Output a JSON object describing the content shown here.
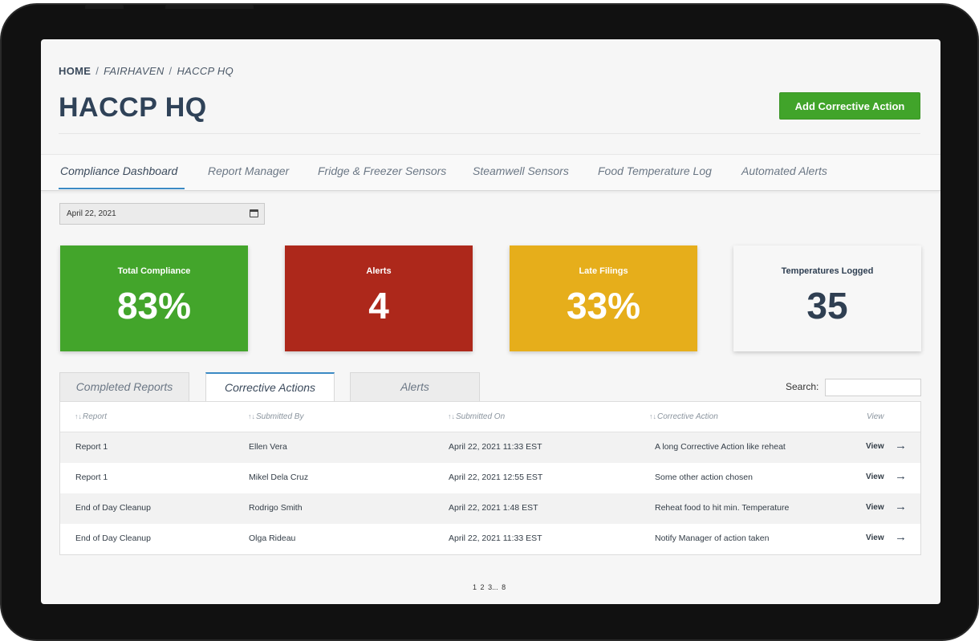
{
  "breadcrumb": {
    "home": "HOME",
    "sep": "/",
    "items": [
      "FAIRHAVEN",
      "HACCP HQ"
    ]
  },
  "page_title": "HACCP HQ",
  "add_button": "Add Corrective Action",
  "tabs": [
    {
      "label": "Compliance Dashboard",
      "active": true
    },
    {
      "label": "Report Manager"
    },
    {
      "label": "Fridge & Freezer Sensors"
    },
    {
      "label": "Steamwell Sensors"
    },
    {
      "label": "Food Temperature Log"
    },
    {
      "label": "Automated Alerts"
    }
  ],
  "date_value": "April 22, 2021",
  "cards": [
    {
      "label": "Total Compliance",
      "value": "83%",
      "color": "#43a52b"
    },
    {
      "label": "Alerts",
      "value": "4",
      "color": "#ad281b"
    },
    {
      "label": "Late Filings",
      "value": "33%",
      "color": "#e6ae1b"
    },
    {
      "label": "Temperatures Logged",
      "value": "35",
      "color": "#f7f7f7"
    }
  ],
  "subtabs": [
    {
      "label": "Completed Reports"
    },
    {
      "label": "Corrective Actions",
      "active": true
    },
    {
      "label": "Alerts"
    }
  ],
  "search": {
    "label": "Search:",
    "value": ""
  },
  "table": {
    "sort_icon": "↑↓",
    "headers": [
      "Report",
      "Submitted By",
      "Submitted On",
      "Corrective Action",
      "View"
    ],
    "rows": [
      [
        "Report 1",
        "Ellen Vera",
        "April 22, 2021 11:33 EST",
        "A long Corrective Action like reheat",
        "View"
      ],
      [
        "Report 1",
        "Mikel Dela Cruz",
        "April 22, 2021 12:55 EST",
        "Some other action chosen",
        "View"
      ],
      [
        "End of Day Cleanup",
        "Rodrigo Smith",
        "April 22, 2021 1:48 EST",
        "Reheat food to hit min. Temperature",
        "View"
      ],
      [
        "End of Day Cleanup",
        "Olga Rideau",
        "April 22, 2021 11:33 EST",
        "Notify Manager of action taken",
        "View"
      ]
    ],
    "arrow": "→"
  },
  "pagination": [
    "1",
    "2",
    "3...",
    "8"
  ]
}
